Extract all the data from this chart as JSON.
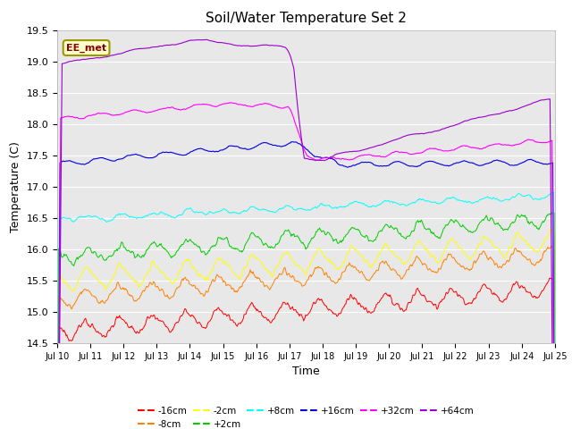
{
  "title": "Soil/Water Temperature Set 2",
  "xlabel": "Time",
  "ylabel": "Temperature (C)",
  "ylim": [
    14.5,
    19.5
  ],
  "annotation": "EE_met",
  "bg_color": "#e8e8e8",
  "series": {
    "-16cm": {
      "color": "#ff0000"
    },
    "-8cm": {
      "color": "#ff8000"
    },
    "-2cm": {
      "color": "#ffff00"
    },
    "+2cm": {
      "color": "#00cc00"
    },
    "+8cm": {
      "color": "#00ffff"
    },
    "+16cm": {
      "color": "#0000dd"
    },
    "+32cm": {
      "color": "#ff00ff"
    },
    "+64cm": {
      "color": "#9900cc"
    }
  },
  "tick_labels": [
    "Jul 10",
    "Jul 11",
    "Jul 12",
    "Jul 13",
    "Jul 14",
    "Jul 15",
    "Jul 16",
    "Jul 17",
    "Jul 18",
    "Jul 19",
    "Jul 20",
    "Jul 21",
    "Jul 22",
    "Jul 23",
    "Jul 24",
    "Jul 25"
  ]
}
